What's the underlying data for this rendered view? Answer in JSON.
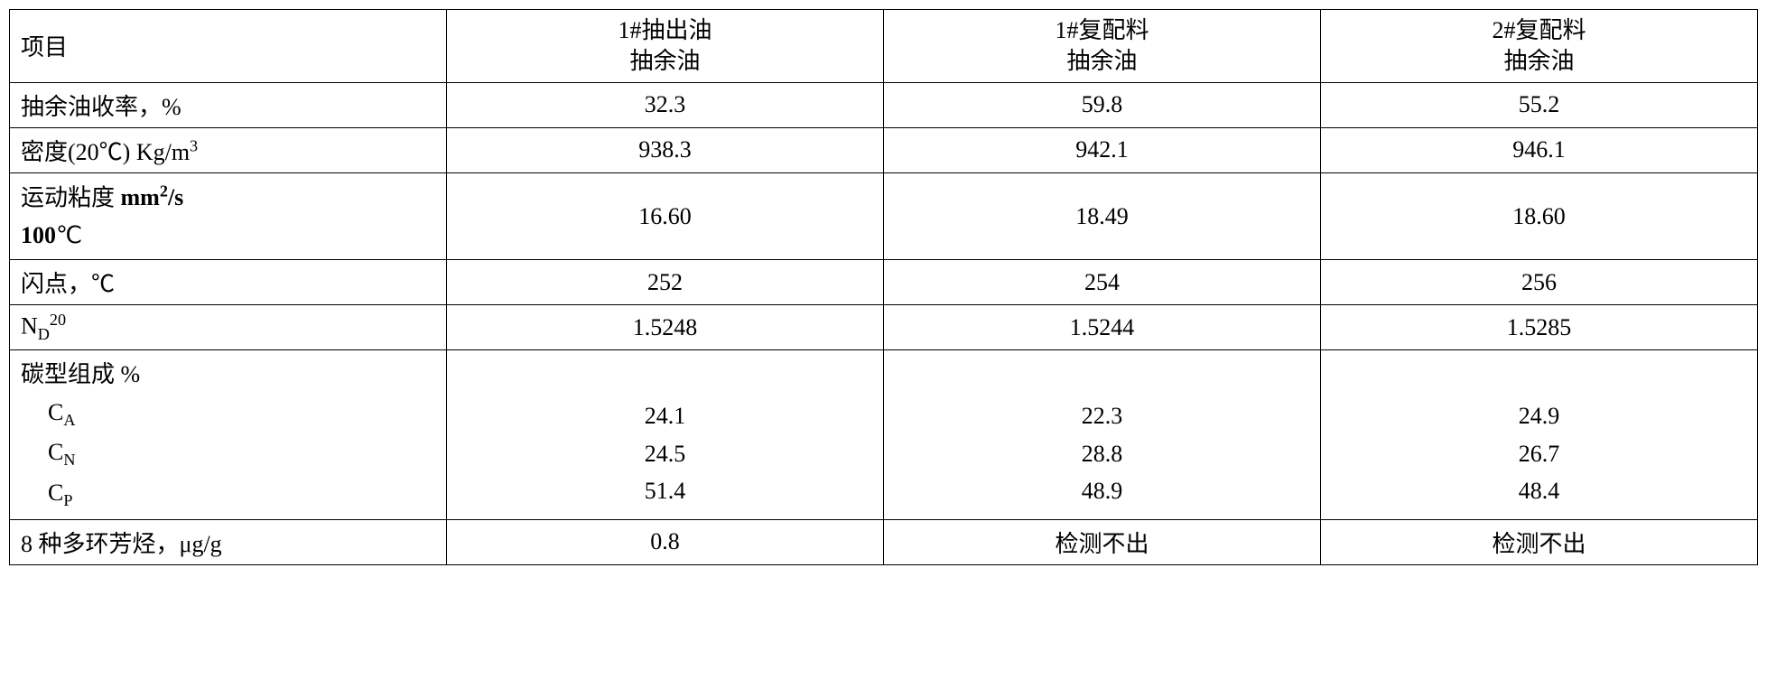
{
  "table": {
    "columns": [
      {
        "line1": "项目",
        "line2": ""
      },
      {
        "line1": "1#抽出油",
        "line2": "抽余油"
      },
      {
        "line1": "1#复配料",
        "line2": "抽余油"
      },
      {
        "line1": "2#复配料",
        "line2": "抽余油"
      }
    ],
    "rows": [
      {
        "label": "抽余油收率，%",
        "v1": "32.3",
        "v2": "59.8",
        "v3": "55.2"
      },
      {
        "label_html": "density",
        "label_prefix": "密度(20℃) Kg/m",
        "label_sup": "3",
        "v1": "938.3",
        "v2": "942.1",
        "v3": "946.1"
      },
      {
        "label_type": "viscosity",
        "label_l1_a": "运动粘度   ",
        "label_l1_b": "mm",
        "label_l1_sup": "2",
        "label_l1_c": "/s",
        "label_l2": "100",
        "label_l2_suffix": "℃",
        "v1": "16.60",
        "v2": "18.49",
        "v3": "18.60"
      },
      {
        "label": "闪点，℃",
        "v1": "252",
        "v2": "254",
        "v3": "256"
      },
      {
        "label_type": "nd",
        "label_base": "N",
        "label_sub": "D",
        "label_sup": "20",
        "v1": "1.5248",
        "v2": "1.5244",
        "v3": "1.5285"
      },
      {
        "label_type": "carbon",
        "label_title": "碳型组成   %",
        "lines": [
          {
            "pre": "C",
            "sub": "A"
          },
          {
            "pre": "C",
            "sub": "N"
          },
          {
            "pre": "C",
            "sub": "P"
          }
        ],
        "v1_lines": [
          "24.1",
          "24.5",
          "51.4"
        ],
        "v2_lines": [
          "22.3",
          "28.8",
          "48.9"
        ],
        "v3_lines": [
          "24.9",
          "26.7",
          "48.4"
        ]
      },
      {
        "label": "8 种多环芳烃，μg/g",
        "v1": "0.8",
        "v2": "检测不出",
        "v3": "检测不出"
      }
    ]
  }
}
